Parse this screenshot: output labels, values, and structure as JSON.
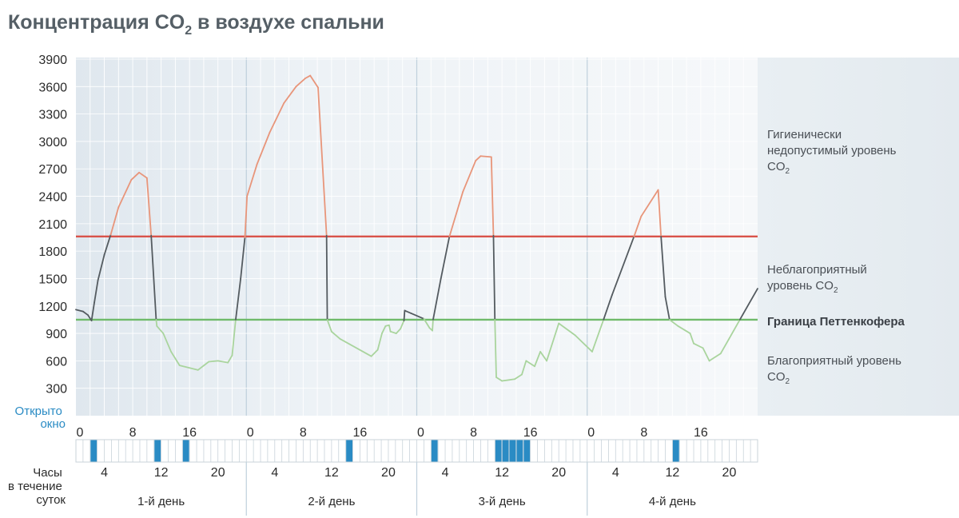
{
  "chart_data": {
    "type": "line",
    "title": {
      "main": "Концентрация CO",
      "sub": "2",
      "tail": " в воздухе спальни"
    },
    "y_ticks": [
      300,
      600,
      900,
      1200,
      1500,
      1800,
      2100,
      2400,
      2700,
      3000,
      3300,
      3600,
      3900
    ],
    "ylim": [
      0,
      3900
    ],
    "x_unit": "hours",
    "xlim": [
      0,
      96
    ],
    "top_hour_ticks": [
      "0",
      "8",
      "16"
    ],
    "bottom_hour_ticks": [
      "4",
      "12",
      "20"
    ],
    "days": [
      "1-й день",
      "2-й день",
      "3-й день",
      "4-й день"
    ],
    "window_label": [
      "Открыто",
      "окно"
    ],
    "hours_label": [
      "Часы",
      "в течение",
      "суток"
    ],
    "thresholds": [
      {
        "key": "hygienic",
        "value": 1960,
        "color": "#d9534a"
      },
      {
        "key": "pettenkofer",
        "value": 1050,
        "color": "#6fba6a"
      }
    ],
    "zones": {
      "hygienic": [
        "Гигиенически",
        "недопустимый уровень",
        "CO",
        "2"
      ],
      "unfavorable": [
        "Неблагоприятный",
        "уровень CO",
        "2"
      ],
      "pettenkofer": "Граница Петтенкофера",
      "favorable": [
        "Благоприятный уровень",
        "CO",
        "2"
      ]
    },
    "colors": {
      "high": "#e8957a",
      "mid": "#545b60",
      "low": "#a9d49d"
    },
    "series": [
      {
        "x": 0,
        "y": 1160
      },
      {
        "x": 1,
        "y": 1140
      },
      {
        "x": 1.7,
        "y": 1100
      },
      {
        "x": 2.2,
        "y": 1040
      },
      {
        "x": 2.6,
        "y": 1240
      },
      {
        "x": 3.1,
        "y": 1480
      },
      {
        "x": 4,
        "y": 1760
      },
      {
        "x": 4.9,
        "y": 1980
      },
      {
        "x": 6,
        "y": 2280
      },
      {
        "x": 7.8,
        "y": 2580
      },
      {
        "x": 8.9,
        "y": 2660
      },
      {
        "x": 10,
        "y": 2600
      },
      {
        "x": 10.6,
        "y": 1970
      },
      {
        "x": 11.3,
        "y": 1050
      },
      {
        "x": 11.4,
        "y": 980
      },
      {
        "x": 12.3,
        "y": 900
      },
      {
        "x": 13.4,
        "y": 700
      },
      {
        "x": 14.6,
        "y": 550
      },
      {
        "x": 17.2,
        "y": 500
      },
      {
        "x": 18.7,
        "y": 590
      },
      {
        "x": 20,
        "y": 600
      },
      {
        "x": 21.4,
        "y": 580
      },
      {
        "x": 22,
        "y": 660
      },
      {
        "x": 22.5,
        "y": 1050
      },
      {
        "x": 23.2,
        "y": 1500
      },
      {
        "x": 23.8,
        "y": 1950
      },
      {
        "x": 24.1,
        "y": 2400
      },
      {
        "x": 25.5,
        "y": 2750
      },
      {
        "x": 27.3,
        "y": 3100
      },
      {
        "x": 29.3,
        "y": 3420
      },
      {
        "x": 31,
        "y": 3600
      },
      {
        "x": 32.3,
        "y": 3690
      },
      {
        "x": 33,
        "y": 3720
      },
      {
        "x": 34.1,
        "y": 3590
      },
      {
        "x": 35.3,
        "y": 1970
      },
      {
        "x": 35.4,
        "y": 1050
      },
      {
        "x": 36,
        "y": 920
      },
      {
        "x": 37.2,
        "y": 840
      },
      {
        "x": 41.6,
        "y": 650
      },
      {
        "x": 42.5,
        "y": 720
      },
      {
        "x": 43.1,
        "y": 900
      },
      {
        "x": 43.6,
        "y": 980
      },
      {
        "x": 44.1,
        "y": 990
      },
      {
        "x": 44.3,
        "y": 920
      },
      {
        "x": 45.1,
        "y": 900
      },
      {
        "x": 45.7,
        "y": 950
      },
      {
        "x": 46.2,
        "y": 1040
      },
      {
        "x": 46.3,
        "y": 1150
      },
      {
        "x": 47.2,
        "y": 1120
      },
      {
        "x": 49,
        "y": 1060
      },
      {
        "x": 49.8,
        "y": 960
      },
      {
        "x": 50.2,
        "y": 930
      },
      {
        "x": 50.3,
        "y": 1050
      },
      {
        "x": 51.4,
        "y": 1500
      },
      {
        "x": 52.6,
        "y": 1960
      },
      {
        "x": 54.5,
        "y": 2450
      },
      {
        "x": 56.3,
        "y": 2790
      },
      {
        "x": 57,
        "y": 2840
      },
      {
        "x": 58.5,
        "y": 2830
      },
      {
        "x": 58.8,
        "y": 1970
      },
      {
        "x": 59,
        "y": 1050
      },
      {
        "x": 59.2,
        "y": 420
      },
      {
        "x": 60,
        "y": 380
      },
      {
        "x": 61.8,
        "y": 400
      },
      {
        "x": 62.8,
        "y": 450
      },
      {
        "x": 63.4,
        "y": 600
      },
      {
        "x": 64.6,
        "y": 540
      },
      {
        "x": 65.4,
        "y": 700
      },
      {
        "x": 66.3,
        "y": 600
      },
      {
        "x": 68,
        "y": 1010
      },
      {
        "x": 70.3,
        "y": 880
      },
      {
        "x": 72.7,
        "y": 700
      },
      {
        "x": 74.3,
        "y": 1050
      },
      {
        "x": 75.5,
        "y": 1320
      },
      {
        "x": 78.6,
        "y": 1960
      },
      {
        "x": 79.6,
        "y": 2180
      },
      {
        "x": 82,
        "y": 2470
      },
      {
        "x": 82.4,
        "y": 1960
      },
      {
        "x": 83,
        "y": 1300
      },
      {
        "x": 83.6,
        "y": 1050
      },
      {
        "x": 84.8,
        "y": 980
      },
      {
        "x": 86.5,
        "y": 900
      },
      {
        "x": 87,
        "y": 790
      },
      {
        "x": 88.3,
        "y": 740
      },
      {
        "x": 89.2,
        "y": 600
      },
      {
        "x": 90.8,
        "y": 680
      },
      {
        "x": 91.9,
        "y": 830
      },
      {
        "x": 93.5,
        "y": 1050
      },
      {
        "x": 96,
        "y": 1390
      }
    ],
    "window_open_hours": [
      2,
      11,
      15,
      38,
      50,
      59,
      60,
      61,
      62,
      63,
      84
    ]
  }
}
